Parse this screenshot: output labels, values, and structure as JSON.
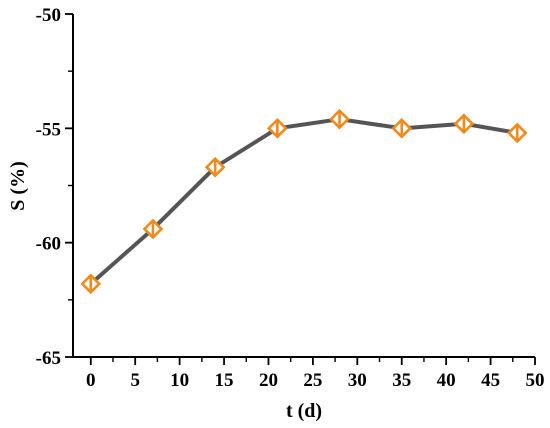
{
  "chart_data": {
    "type": "line",
    "xlabel": "t (d)",
    "ylabel": "S (%)",
    "xlim": [
      -2,
      50
    ],
    "ylim": [
      -65,
      -50
    ],
    "xticks": [
      0,
      5,
      10,
      15,
      20,
      25,
      30,
      35,
      40,
      45,
      50
    ],
    "yticks": [
      -65,
      -60,
      -55,
      -50
    ],
    "x": [
      0,
      7,
      14,
      21,
      28,
      35,
      42,
      48
    ],
    "series": [
      {
        "values": [
          -61.8,
          -59.4,
          -56.7,
          -55.0,
          -54.6,
          -55.0,
          -54.8,
          -55.2
        ],
        "marker": "half-filled diamond",
        "line_color": "#555555",
        "marker_color": "#f08a1c"
      }
    ],
    "grid": false,
    "legend": "none"
  }
}
